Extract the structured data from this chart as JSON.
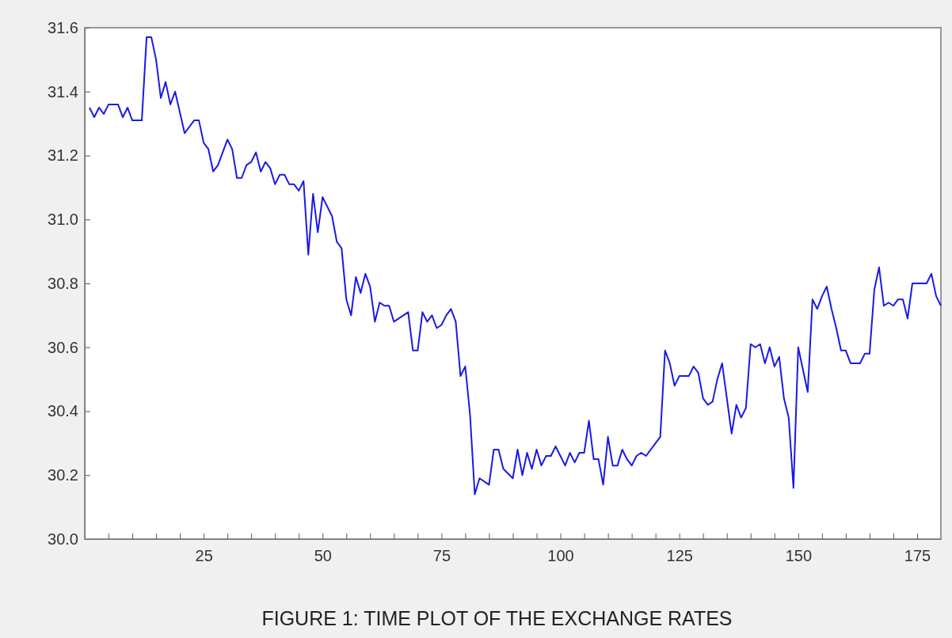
{
  "chart_data": {
    "type": "line",
    "title": "FIGURE 1: TIME PLOT OF THE EXCHANGE RATES",
    "x": [
      1,
      2,
      3,
      4,
      5,
      7,
      8,
      9,
      10,
      12,
      13,
      14,
      15,
      16,
      17,
      18,
      19,
      21,
      23,
      24,
      25,
      26,
      27,
      28,
      30,
      31,
      32,
      33,
      34,
      35,
      36,
      37,
      38,
      39,
      40,
      41,
      42,
      43,
      44,
      45,
      46,
      47,
      48,
      49,
      50,
      52,
      53,
      54,
      55,
      56,
      57,
      58,
      59,
      60,
      61,
      62,
      63,
      64,
      65,
      67,
      68,
      69,
      70,
      71,
      72,
      73,
      74,
      75,
      76,
      77,
      78,
      79,
      80,
      81,
      82,
      83,
      85,
      86,
      87,
      88,
      90,
      91,
      92,
      93,
      94,
      95,
      96,
      97,
      98,
      99,
      100,
      101,
      102,
      103,
      104,
      105,
      106,
      107,
      108,
      109,
      110,
      111,
      112,
      113,
      114,
      115,
      116,
      117,
      118,
      120,
      121,
      122,
      123,
      124,
      125,
      126,
      127,
      128,
      129,
      130,
      131,
      132,
      133,
      134,
      136,
      137,
      138,
      139,
      140,
      141,
      142,
      143,
      144,
      145,
      146,
      147,
      148,
      149,
      150,
      152,
      153,
      154,
      155,
      156,
      157,
      158,
      159,
      160,
      161,
      163,
      164,
      165,
      166,
      167,
      168,
      169,
      170,
      171,
      172,
      173,
      174,
      175,
      176,
      177,
      178,
      179,
      180
    ],
    "series": [
      {
        "color": "#1a1ae6",
        "values": [
          31.35,
          31.32,
          31.35,
          31.33,
          31.36,
          31.36,
          31.32,
          31.35,
          31.31,
          31.31,
          31.57,
          31.57,
          31.5,
          31.38,
          31.43,
          31.36,
          31.4,
          31.27,
          31.31,
          31.31,
          31.24,
          31.22,
          31.15,
          31.17,
          31.25,
          31.22,
          31.13,
          31.13,
          31.17,
          31.18,
          31.21,
          31.15,
          31.18,
          31.16,
          31.11,
          31.14,
          31.14,
          31.11,
          31.11,
          31.09,
          31.12,
          30.89,
          31.08,
          30.96,
          31.07,
          31.01,
          30.93,
          30.91,
          30.75,
          30.7,
          30.82,
          30.77,
          30.83,
          30.79,
          30.68,
          30.74,
          30.73,
          30.73,
          30.68,
          30.7,
          30.71,
          30.59,
          30.59,
          30.71,
          30.68,
          30.7,
          30.66,
          30.67,
          30.7,
          30.72,
          30.68,
          30.51,
          30.54,
          30.39,
          30.14,
          30.19,
          30.17,
          30.28,
          30.28,
          30.22,
          30.19,
          30.28,
          30.2,
          30.27,
          30.22,
          30.28,
          30.23,
          30.26,
          30.26,
          30.29,
          30.26,
          30.23,
          30.27,
          30.24,
          30.27,
          30.27,
          30.37,
          30.25,
          30.25,
          30.17,
          30.32,
          30.23,
          30.23,
          30.28,
          30.25,
          30.23,
          30.26,
          30.27,
          30.26,
          30.3,
          30.32,
          30.59,
          30.55,
          30.48,
          30.51,
          30.51,
          30.51,
          30.54,
          30.52,
          30.44,
          30.42,
          30.43,
          30.5,
          30.55,
          30.33,
          30.42,
          30.38,
          30.41,
          30.61,
          30.6,
          30.61,
          30.55,
          30.6,
          30.54,
          30.57,
          30.44,
          30.38,
          30.16,
          30.6,
          30.46,
          30.75,
          30.72,
          30.76,
          30.79,
          30.72,
          30.66,
          30.59,
          30.59,
          30.55,
          30.55,
          30.58,
          30.58,
          30.78,
          30.85,
          30.73,
          30.74,
          30.73,
          30.75,
          30.75,
          30.69,
          30.8,
          30.8,
          30.8,
          30.8,
          30.83,
          30.76,
          30.73
        ]
      }
    ],
    "xlim": [
      0,
      180
    ],
    "xticks": [
      {
        "value": 5,
        "label": null
      },
      {
        "value": 10,
        "label": null
      },
      {
        "value": 15,
        "label": null
      },
      {
        "value": 20,
        "label": null
      },
      25,
      {
        "value": 30,
        "label": null
      },
      {
        "value": 35,
        "label": null
      },
      {
        "value": 40,
        "label": null
      },
      {
        "value": 45,
        "label": null
      },
      50,
      {
        "value": 55,
        "label": null
      },
      {
        "value": 60,
        "label": null
      },
      {
        "value": 65,
        "label": null
      },
      {
        "value": 70,
        "label": null
      },
      75,
      {
        "value": 80,
        "label": null
      },
      {
        "value": 85,
        "label": null
      },
      {
        "value": 90,
        "label": null
      },
      {
        "value": 95,
        "label": null
      },
      100,
      {
        "value": 105,
        "label": null
      },
      {
        "value": 110,
        "label": null
      },
      {
        "value": 115,
        "label": null
      },
      {
        "value": 120,
        "label": null
      },
      125,
      {
        "value": 130,
        "label": null
      },
      {
        "value": 135,
        "label": null
      },
      {
        "value": 140,
        "label": null
      },
      {
        "value": 145,
        "label": null
      },
      150,
      {
        "value": 155,
        "label": null
      },
      {
        "value": 160,
        "label": null
      },
      {
        "value": 165,
        "label": null
      },
      {
        "value": 170,
        "label": null
      },
      175
    ],
    "ylim": [
      30.0,
      31.6
    ],
    "yticks": [
      {
        "value": 30,
        "label": "30.0"
      },
      30.2,
      30.4,
      30.6,
      30.8,
      {
        "value": 31,
        "label": "31.0"
      },
      31.2,
      31.4,
      31.6
    ],
    "grid": false,
    "marker": "none",
    "line_style": "solid"
  }
}
